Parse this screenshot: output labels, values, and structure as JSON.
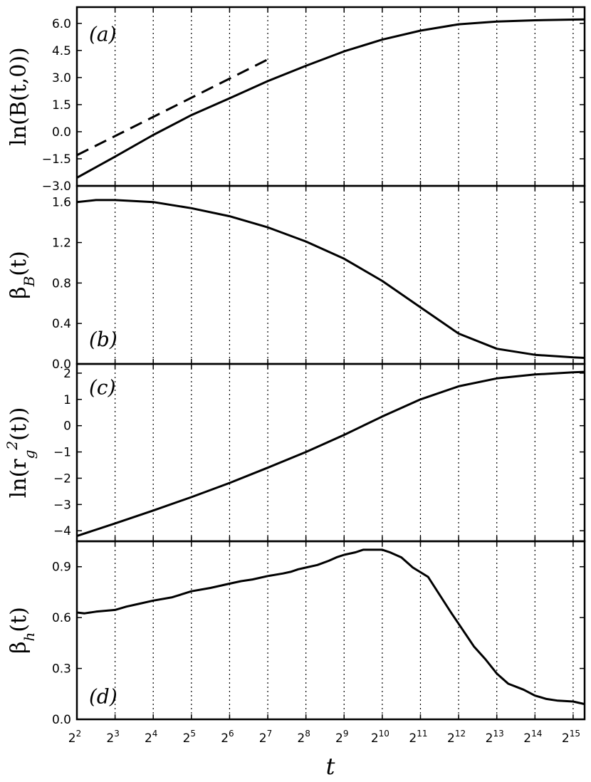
{
  "chart_data": [
    {
      "type": "line",
      "panel_label": "(a)",
      "ylabel": "ln(B(t,0))",
      "ylim": [
        -3.0,
        6.9
      ],
      "yticks": [
        -3.0,
        -1.5,
        0.0,
        1.5,
        3.0,
        4.5,
        6.0
      ],
      "ytick_labels": [
        "−3.0",
        "−1.5",
        "0.0",
        "1.5",
        "3.0",
        "4.5",
        "6.0"
      ],
      "xscale": "log2",
      "xlim_log2": [
        2,
        15.3
      ],
      "series": [
        {
          "style": "solid",
          "log2_t": [
            2,
            3,
            4,
            5,
            6,
            7,
            8,
            9,
            10,
            11,
            12,
            13,
            14,
            15,
            15.3
          ],
          "values": [
            -2.55,
            -1.38,
            -0.18,
            0.92,
            1.85,
            2.8,
            3.65,
            4.45,
            5.1,
            5.6,
            5.95,
            6.1,
            6.17,
            6.21,
            6.22
          ]
        },
        {
          "style": "dashed",
          "log2_t": [
            2,
            7
          ],
          "values": [
            -1.3,
            4.0
          ]
        }
      ]
    },
    {
      "type": "line",
      "panel_label": "(b)",
      "ylabel": "β_B(t)",
      "ylim": [
        0.0,
        1.76
      ],
      "yticks": [
        0.0,
        0.4,
        0.8,
        1.2,
        1.6
      ],
      "ytick_labels": [
        "0.0",
        "0.4",
        "0.8",
        "1.2",
        "1.6"
      ],
      "xscale": "log2",
      "xlim_log2": [
        2,
        15.3
      ],
      "series": [
        {
          "style": "solid",
          "log2_t": [
            2,
            2.5,
            3,
            4,
            5,
            6,
            7,
            8,
            9,
            10,
            11,
            12,
            13,
            14,
            15,
            15.3
          ],
          "values": [
            1.6,
            1.62,
            1.62,
            1.6,
            1.54,
            1.46,
            1.35,
            1.21,
            1.04,
            0.82,
            0.56,
            0.3,
            0.15,
            0.09,
            0.065,
            0.06
          ]
        }
      ]
    },
    {
      "type": "line",
      "panel_label": "(c)",
      "ylabel": "ln(r_g^2(t))",
      "ylim": [
        -4.4,
        2.35
      ],
      "yticks": [
        -4,
        -3,
        -2,
        -1,
        0,
        1,
        2
      ],
      "ytick_labels": [
        "−4",
        "−3",
        "−2",
        "−1",
        "0",
        "1",
        "2"
      ],
      "xscale": "log2",
      "xlim_log2": [
        2,
        15.3
      ],
      "series": [
        {
          "style": "solid",
          "log2_t": [
            2,
            3,
            4,
            5,
            6,
            7,
            8,
            9,
            10,
            11,
            12,
            13,
            14,
            15,
            15.3
          ],
          "values": [
            -4.2,
            -3.72,
            -3.23,
            -2.72,
            -2.18,
            -1.6,
            -1.0,
            -0.35,
            0.35,
            1.0,
            1.5,
            1.8,
            1.95,
            2.03,
            2.05
          ]
        }
      ]
    },
    {
      "type": "line",
      "panel_label": "(d)",
      "ylabel": "β_h(t)",
      "ylim": [
        0.0,
        1.05
      ],
      "yticks": [
        0.0,
        0.3,
        0.6,
        0.9
      ],
      "ytick_labels": [
        "0.0",
        "0.3",
        "0.6",
        "0.9"
      ],
      "xscale": "log2",
      "xlim_log2": [
        2,
        15.3
      ],
      "series": [
        {
          "style": "solid",
          "log2_t": [
            2,
            2.2,
            2.5,
            3,
            3.3,
            3.6,
            4,
            4.5,
            5,
            5.5,
            6,
            6.3,
            6.6,
            7,
            7.4,
            7.6,
            7.8,
            8,
            8.3,
            8.6,
            8.8,
            9,
            9.3,
            9.5,
            10,
            10.2,
            10.5,
            10.8,
            11.2,
            11.5,
            11.8,
            12.1,
            12.4,
            12.7,
            13,
            13.3,
            13.7,
            14,
            14.3,
            14.6,
            15,
            15.3
          ],
          "values": [
            0.63,
            0.625,
            0.635,
            0.645,
            0.665,
            0.68,
            0.7,
            0.72,
            0.755,
            0.775,
            0.8,
            0.815,
            0.825,
            0.845,
            0.86,
            0.87,
            0.885,
            0.895,
            0.91,
            0.935,
            0.955,
            0.97,
            0.985,
            1.0,
            1.0,
            0.985,
            0.955,
            0.895,
            0.84,
            0.735,
            0.63,
            0.53,
            0.43,
            0.355,
            0.27,
            0.21,
            0.175,
            0.14,
            0.12,
            0.11,
            0.105,
            0.09
          ]
        }
      ]
    }
  ],
  "x_axis": {
    "label": "t",
    "ticks": [
      {
        "base": "2",
        "exp": "2"
      },
      {
        "base": "2",
        "exp": "3"
      },
      {
        "base": "2",
        "exp": "4"
      },
      {
        "base": "2",
        "exp": "5"
      },
      {
        "base": "2",
        "exp": "6"
      },
      {
        "base": "2",
        "exp": "7"
      },
      {
        "base": "2",
        "exp": "8"
      },
      {
        "base": "2",
        "exp": "9"
      },
      {
        "base": "2",
        "exp": "10"
      },
      {
        "base": "2",
        "exp": "11"
      },
      {
        "base": "2",
        "exp": "12"
      },
      {
        "base": "2",
        "exp": "13"
      },
      {
        "base": "2",
        "exp": "14"
      },
      {
        "base": "2",
        "exp": "15"
      }
    ],
    "gridlines": "dotted vertical at each power of 2 (3..15)"
  }
}
